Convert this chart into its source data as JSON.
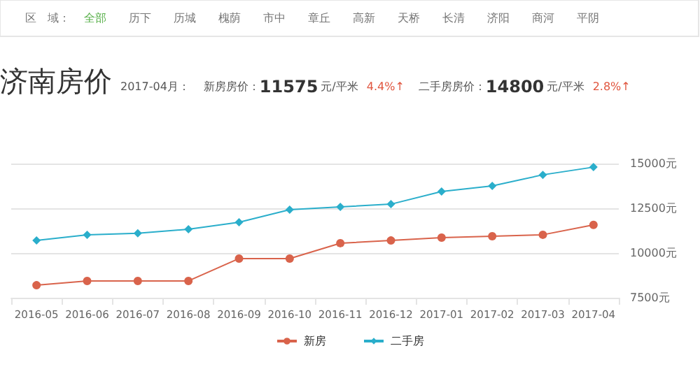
{
  "chart_data": {
    "type": "line",
    "title": "济南房价",
    "annotations": [
      "区　域：",
      "全部",
      "历下",
      "历城",
      "槐荫",
      "市中",
      "章丘",
      "高新",
      "天桥",
      "长清",
      "济阳",
      "商河",
      "平阴",
      "2017-04月：",
      "新房房价：",
      "11575",
      "元/平米",
      "4.4%↑",
      "二手房房价：",
      "14800",
      "元/平米",
      "2.8%↑"
    ],
    "categories": [
      "2016-05",
      "2016-06",
      "2016-07",
      "2016-08",
      "2016-09",
      "2016-10",
      "2016-11",
      "2016-12",
      "2017-01",
      "2017-02",
      "2017-03",
      "2017-04"
    ],
    "series": [
      {
        "name": "新房",
        "color": "#d9634b",
        "marker": "circle",
        "values": [
          8200,
          8440,
          8440,
          8440,
          9690,
          9690,
          10550,
          10700,
          10860,
          10940,
          11020,
          11575
        ]
      },
      {
        "name": "二手房",
        "color": "#2aaecb",
        "marker": "diamond",
        "values": [
          10700,
          11020,
          11100,
          11330,
          11720,
          12420,
          12580,
          12730,
          13440,
          13750,
          14370,
          14800
        ]
      }
    ],
    "ylim": [
      7500,
      15000
    ],
    "yticks": [
      {
        "value": 7500,
        "label": "7500元"
      },
      {
        "value": 10000,
        "label": "10000元"
      },
      {
        "value": 12500,
        "label": "12500元"
      },
      {
        "value": 15000,
        "label": "15000元"
      }
    ],
    "grid": "y",
    "legend": "bottom"
  }
}
